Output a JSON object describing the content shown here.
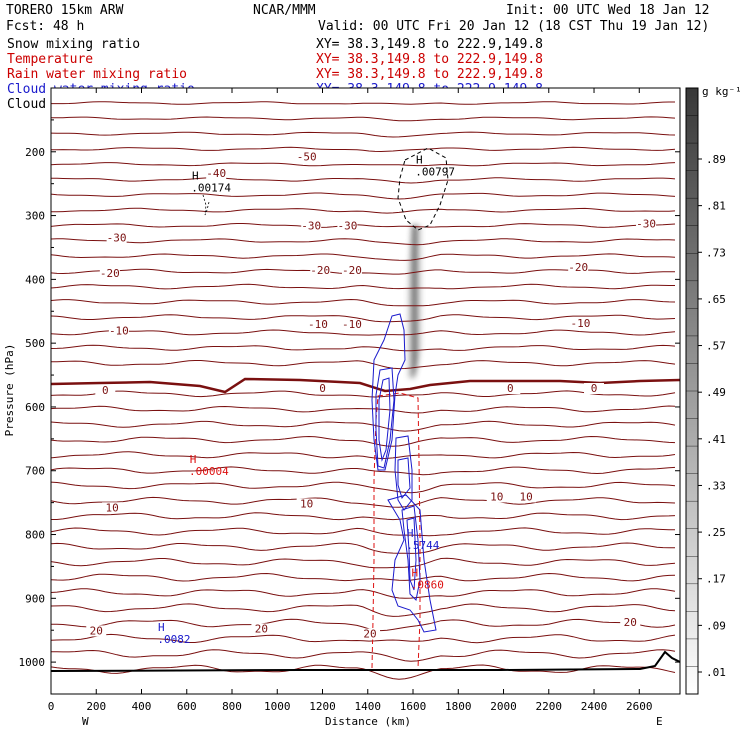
{
  "header": {
    "model": "TORERO  15km ARW",
    "center": "NCAR/MMM",
    "init": "Init: 00 UTC Wed 18 Jan 12",
    "fcst": "Fcst:   48 h",
    "valid": "Valid: 00 UTC Fri 20 Jan 12 (18 CST Thu 19 Jan 12)"
  },
  "fields": [
    {
      "name": "Snow mixing ratio",
      "xy": "XY=  38.3,149.8 to 222.9,149.8",
      "color": "#000000"
    },
    {
      "name": "Temperature",
      "xy": "XY=  38.3,149.8 to 222.9,149.8",
      "color": "#cc0000"
    },
    {
      "name": "Rain water mixing ratio",
      "xy": "XY=  38.3,149.8 to 222.9,149.8",
      "color": "#cc0000"
    },
    {
      "name": "Cloud water mixing ratio",
      "xy": "XY=  38.3,149.8 to 222.9,149.8",
      "color": "#1a1acc"
    },
    {
      "name": "Cloud ice mixing ratio",
      "xy": "XY=  38.3,149.8 to 222.9,149.8",
      "color": "#000000"
    }
  ],
  "colors": {
    "temperature": "#7a1010",
    "freezing": "#7a1010",
    "rain": "#dd1111",
    "cloud_water": "#1a1acc",
    "cloud_ice": "#000000",
    "terrain": "#000000"
  },
  "chart_data": {
    "type": "cross-section",
    "xlabel": "Distance (km)",
    "ylabel": "Pressure (hPa)",
    "xlim": [
      0,
      2780
    ],
    "ylim": [
      1050,
      100
    ],
    "x_ticks": [
      0,
      200,
      400,
      600,
      800,
      1000,
      1200,
      1400,
      1600,
      1800,
      2000,
      2200,
      2400,
      2600
    ],
    "y_ticks": [
      200,
      300,
      400,
      500,
      600,
      700,
      800,
      900,
      1000
    ],
    "left_end_label": "W",
    "right_end_label": "E",
    "colorbar": {
      "unit": "g kg⁻¹",
      "labels": [
        ".01",
        ".09",
        ".17",
        ".25",
        ".33",
        ".41",
        ".49",
        ".57",
        ".65",
        ".73",
        ".81",
        ".89"
      ]
    },
    "temperature_contour_labels": [
      {
        "x": 730,
        "p": 238,
        "text": "-40"
      },
      {
        "x": 1130,
        "p": 212,
        "text": "-50"
      },
      {
        "x": 290,
        "p": 339,
        "text": "-30"
      },
      {
        "x": 1150,
        "p": 320,
        "text": "-30"
      },
      {
        "x": 1310,
        "p": 320,
        "text": "-30"
      },
      {
        "x": 2630,
        "p": 317,
        "text": "-30"
      },
      {
        "x": 260,
        "p": 395,
        "text": "-20"
      },
      {
        "x": 1190,
        "p": 390,
        "text": "-20"
      },
      {
        "x": 1330,
        "p": 390,
        "text": "-20"
      },
      {
        "x": 2330,
        "p": 385,
        "text": "-20"
      },
      {
        "x": 300,
        "p": 485,
        "text": "-10"
      },
      {
        "x": 1180,
        "p": 475,
        "text": "-10"
      },
      {
        "x": 1330,
        "p": 475,
        "text": "-10"
      },
      {
        "x": 2340,
        "p": 473,
        "text": "-10"
      },
      {
        "x": 240,
        "p": 578,
        "text": "0"
      },
      {
        "x": 1200,
        "p": 575,
        "text": "0"
      },
      {
        "x": 2030,
        "p": 575,
        "text": "0"
      },
      {
        "x": 2400,
        "p": 575,
        "text": "0"
      },
      {
        "x": 270,
        "p": 762,
        "text": "10"
      },
      {
        "x": 1130,
        "p": 756,
        "text": "10"
      },
      {
        "x": 1970,
        "p": 745,
        "text": "10"
      },
      {
        "x": 2100,
        "p": 745,
        "text": "10"
      },
      {
        "x": 200,
        "p": 955,
        "text": "20"
      },
      {
        "x": 930,
        "p": 952,
        "text": "20"
      },
      {
        "x": 1410,
        "p": 960,
        "text": "20"
      },
      {
        "x": 2560,
        "p": 942,
        "text": "20"
      }
    ],
    "maxima": [
      {
        "text": "H",
        "value": ".00174",
        "x": 620,
        "p": 262,
        "field": "Snow mixing ratio"
      },
      {
        "text": "H",
        "value": ".00797",
        "x": 1610,
        "p": 237,
        "field": "Cloud ice mixing ratio"
      },
      {
        "text": "H",
        "value": ".00004",
        "x": 610,
        "p": 707,
        "field": "Rain water mixing ratio"
      },
      {
        "text": "H",
        "value": ".5744",
        "x": 1570,
        "p": 823,
        "field": "Cloud water mixing ratio"
      },
      {
        "text": "H",
        "value": ".0860",
        "x": 1590,
        "p": 885,
        "field": "Rain water mixing ratio"
      },
      {
        "text": "H",
        "value": ".0082",
        "x": 470,
        "p": 970,
        "field": "Cloud water mixing ratio"
      }
    ]
  }
}
